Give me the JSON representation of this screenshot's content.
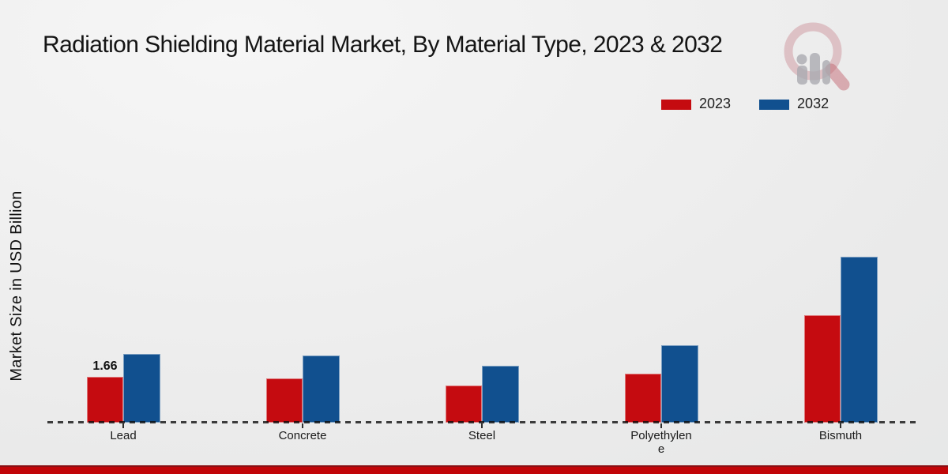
{
  "title": "Radiation Shielding Material Market, By Material Type, 2023 & 2032",
  "ylabel": "Market Size in USD Billion",
  "legend": {
    "items": [
      {
        "label": "2023",
        "color": "#c50b10"
      },
      {
        "label": "2032",
        "color": "#11508f"
      }
    ]
  },
  "watermark_icon": "magnifier-bar-chart-logo",
  "colors": {
    "series_2023": "#c50b10",
    "series_2032": "#11508f",
    "footer_band": "#c10508",
    "baseline": "#1a1a1a"
  },
  "chart_data": {
    "type": "bar",
    "title": "Radiation Shielding Material Market, By Material Type, 2023 & 2032",
    "categories": [
      "Lead",
      "Concrete",
      "Steel",
      "Polyethylene",
      "Bismuth"
    ],
    "series": [
      {
        "name": "2023",
        "color": "#c50b10",
        "values": [
          1.66,
          1.61,
          1.37,
          1.79,
          3.91
        ]
      },
      {
        "name": "2032",
        "color": "#11508f",
        "values": [
          2.5,
          2.46,
          2.07,
          2.83,
          6.05
        ]
      }
    ],
    "annotations": [
      {
        "category": "Lead",
        "series": "2023",
        "text": "1.66"
      }
    ],
    "xlabel": "",
    "ylabel": "Market Size in USD Billion",
    "ylim": [
      0,
      7
    ],
    "grid": false,
    "baseline_style": "dashed",
    "legend_position": "top-right",
    "data_labels_shown_only_for": "Lead 2023"
  }
}
